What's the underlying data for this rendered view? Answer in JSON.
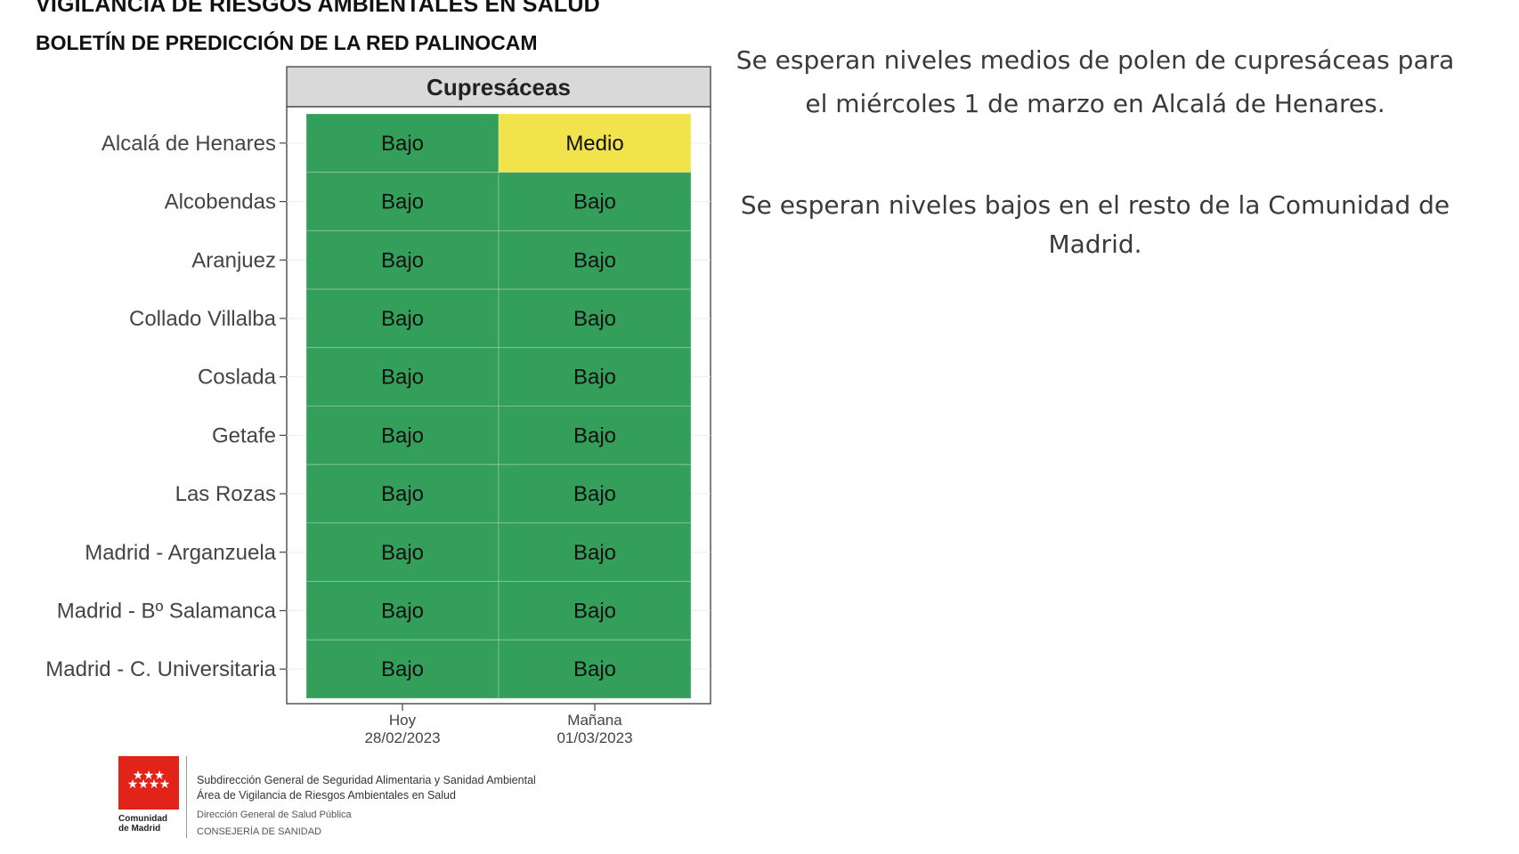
{
  "header": {
    "title": "VIGILANCIA DE RIESGOS AMBIENTALES EN SALUD",
    "subtitle": "BOLETÍN DE PREDICCIÓN DE LA RED PALINOCAM"
  },
  "chart_data": {
    "type": "heatmap",
    "title": "Cupresáceas",
    "columns": [
      {
        "label": "Hoy",
        "date": "28/02/2023"
      },
      {
        "label": "Mañana",
        "date": "01/03/2023"
      }
    ],
    "rows": [
      "Alcalá de Henares",
      "Alcobendas",
      "Aranjuez",
      "Collado Villalba",
      "Coslada",
      "Getafe",
      "Las Rozas",
      "Madrid - Arganzuela",
      "Madrid - Bº Salamanca",
      "Madrid - C. Universitaria"
    ],
    "values": [
      [
        "Bajo",
        "Medio"
      ],
      [
        "Bajo",
        "Bajo"
      ],
      [
        "Bajo",
        "Bajo"
      ],
      [
        "Bajo",
        "Bajo"
      ],
      [
        "Bajo",
        "Bajo"
      ],
      [
        "Bajo",
        "Bajo"
      ],
      [
        "Bajo",
        "Bajo"
      ],
      [
        "Bajo",
        "Bajo"
      ],
      [
        "Bajo",
        "Bajo"
      ],
      [
        "Bajo",
        "Bajo"
      ]
    ],
    "level_colors": {
      "Bajo": "#349e5b",
      "Medio": "#f0e34b"
    },
    "panel_header_color": "#d9d9d9"
  },
  "messages": {
    "line1": "Se esperan niveles medios de polen de cupresáceas para el miércoles 1 de marzo en Alcalá de Henares.",
    "line2": "Se esperan niveles bajos en el resto de la Comunidad de Madrid."
  },
  "footer": {
    "logo_label_line1": "Comunidad",
    "logo_label_line2": "de Madrid",
    "line1": "Subdirección General de Seguridad Alimentaria y  Sanidad Ambiental",
    "line2": "Área de Vigilancia de Riesgos  Ambientales en Salud",
    "line3": "Dirección General de Salud Pública",
    "line4": "CONSEJERÍA DE SANIDAD"
  }
}
